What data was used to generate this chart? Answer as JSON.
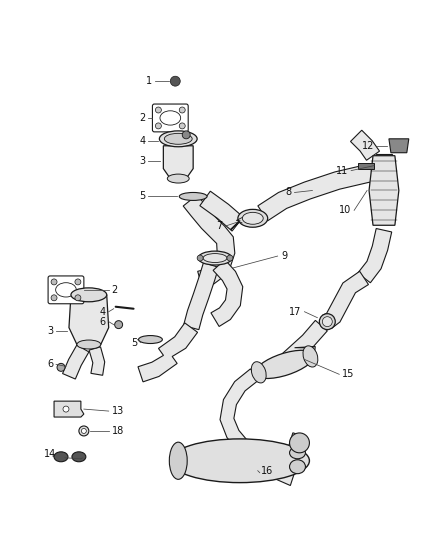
{
  "background_color": "#ffffff",
  "line_color": "#1a1a1a",
  "leader_color": "#444444",
  "text_color": "#111111",
  "fig_width": 4.38,
  "fig_height": 5.33,
  "dpi": 100
}
